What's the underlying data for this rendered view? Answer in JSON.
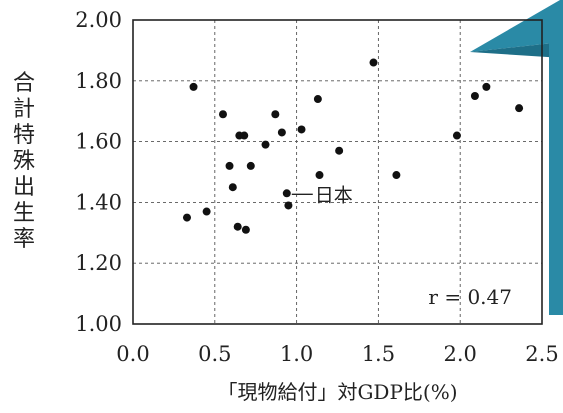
{
  "chart_data": {
    "type": "scatter",
    "title": "",
    "xlabel": "「現物給付」対GDP比(%)",
    "ylabel": "合計特殊出生率",
    "xlim": [
      0.0,
      2.5
    ],
    "ylim": [
      1.0,
      2.0
    ],
    "x_ticks": [
      0.0,
      0.5,
      1.0,
      1.5,
      2.0,
      2.5
    ],
    "x_tick_labels": [
      "0.0",
      "0.5",
      "1.0",
      "1.5",
      "2.0",
      "2.5"
    ],
    "y_ticks": [
      1.0,
      1.2,
      1.4,
      1.6,
      1.8,
      2.0
    ],
    "y_tick_labels": [
      "1.00",
      "1.20",
      "1.40",
      "1.60",
      "1.80",
      "2.00"
    ],
    "grid": "dashed",
    "points": [
      {
        "x": 0.37,
        "y": 1.78
      },
      {
        "x": 0.33,
        "y": 1.35
      },
      {
        "x": 0.45,
        "y": 1.37
      },
      {
        "x": 0.55,
        "y": 1.69
      },
      {
        "x": 0.59,
        "y": 1.52
      },
      {
        "x": 0.61,
        "y": 1.45
      },
      {
        "x": 0.64,
        "y": 1.32
      },
      {
        "x": 0.65,
        "y": 1.62
      },
      {
        "x": 0.68,
        "y": 1.62
      },
      {
        "x": 0.69,
        "y": 1.31
      },
      {
        "x": 0.72,
        "y": 1.52
      },
      {
        "x": 0.81,
        "y": 1.59
      },
      {
        "x": 0.87,
        "y": 1.69
      },
      {
        "x": 0.91,
        "y": 1.63
      },
      {
        "x": 0.94,
        "y": 1.43
      },
      {
        "x": 0.95,
        "y": 1.39
      },
      {
        "x": 1.03,
        "y": 1.64
      },
      {
        "x": 1.13,
        "y": 1.74
      },
      {
        "x": 1.14,
        "y": 1.49
      },
      {
        "x": 1.26,
        "y": 1.57
      },
      {
        "x": 1.47,
        "y": 1.86
      },
      {
        "x": 1.61,
        "y": 1.49
      },
      {
        "x": 1.98,
        "y": 1.62
      },
      {
        "x": 2.09,
        "y": 1.75
      },
      {
        "x": 2.16,
        "y": 1.78
      },
      {
        "x": 2.36,
        "y": 1.71
      }
    ],
    "annotations": [
      {
        "text": "日本",
        "x": 0.94,
        "y": 1.43
      },
      {
        "text": "r = 0.47"
      }
    ]
  },
  "decoration": {
    "accent_color": "#2a8aa6",
    "accent_dark": "#1e6f88"
  }
}
